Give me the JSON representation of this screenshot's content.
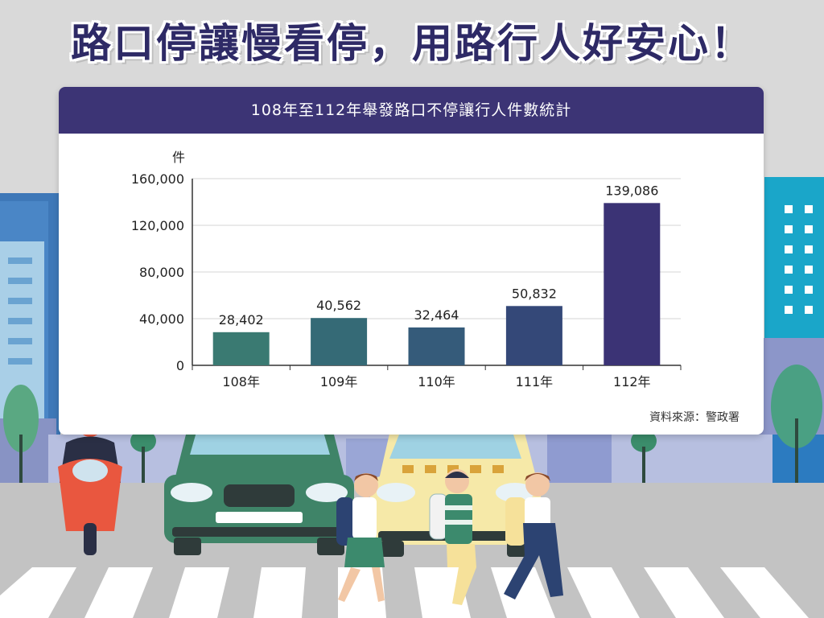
{
  "headline": "路口停讓慢看停，用路行人好安心！",
  "source": "資料來源：警政署",
  "colors": {
    "header_bg": "#3c3475",
    "bars": [
      "#3a7a72",
      "#356a76",
      "#355b7a",
      "#344878",
      "#3b3375"
    ]
  },
  "chart_data": {
    "type": "bar",
    "title": "108年至112年舉發路口不停讓行人件數統計",
    "ylabel": "件",
    "xlabel": "",
    "categories": [
      "108年",
      "109年",
      "110年",
      "111年",
      "112年"
    ],
    "values": [
      28402,
      40562,
      32464,
      50832,
      139086
    ],
    "value_labels": [
      "28,402",
      "40,562",
      "32,464",
      "50,832",
      "139,086"
    ],
    "yticks": [
      0,
      40000,
      80000,
      120000,
      160000
    ],
    "ytick_labels": [
      "0",
      "40,000",
      "80,000",
      "120,000",
      "160,000"
    ],
    "ylim": [
      0,
      160000
    ],
    "grid": true,
    "legend": "none"
  }
}
